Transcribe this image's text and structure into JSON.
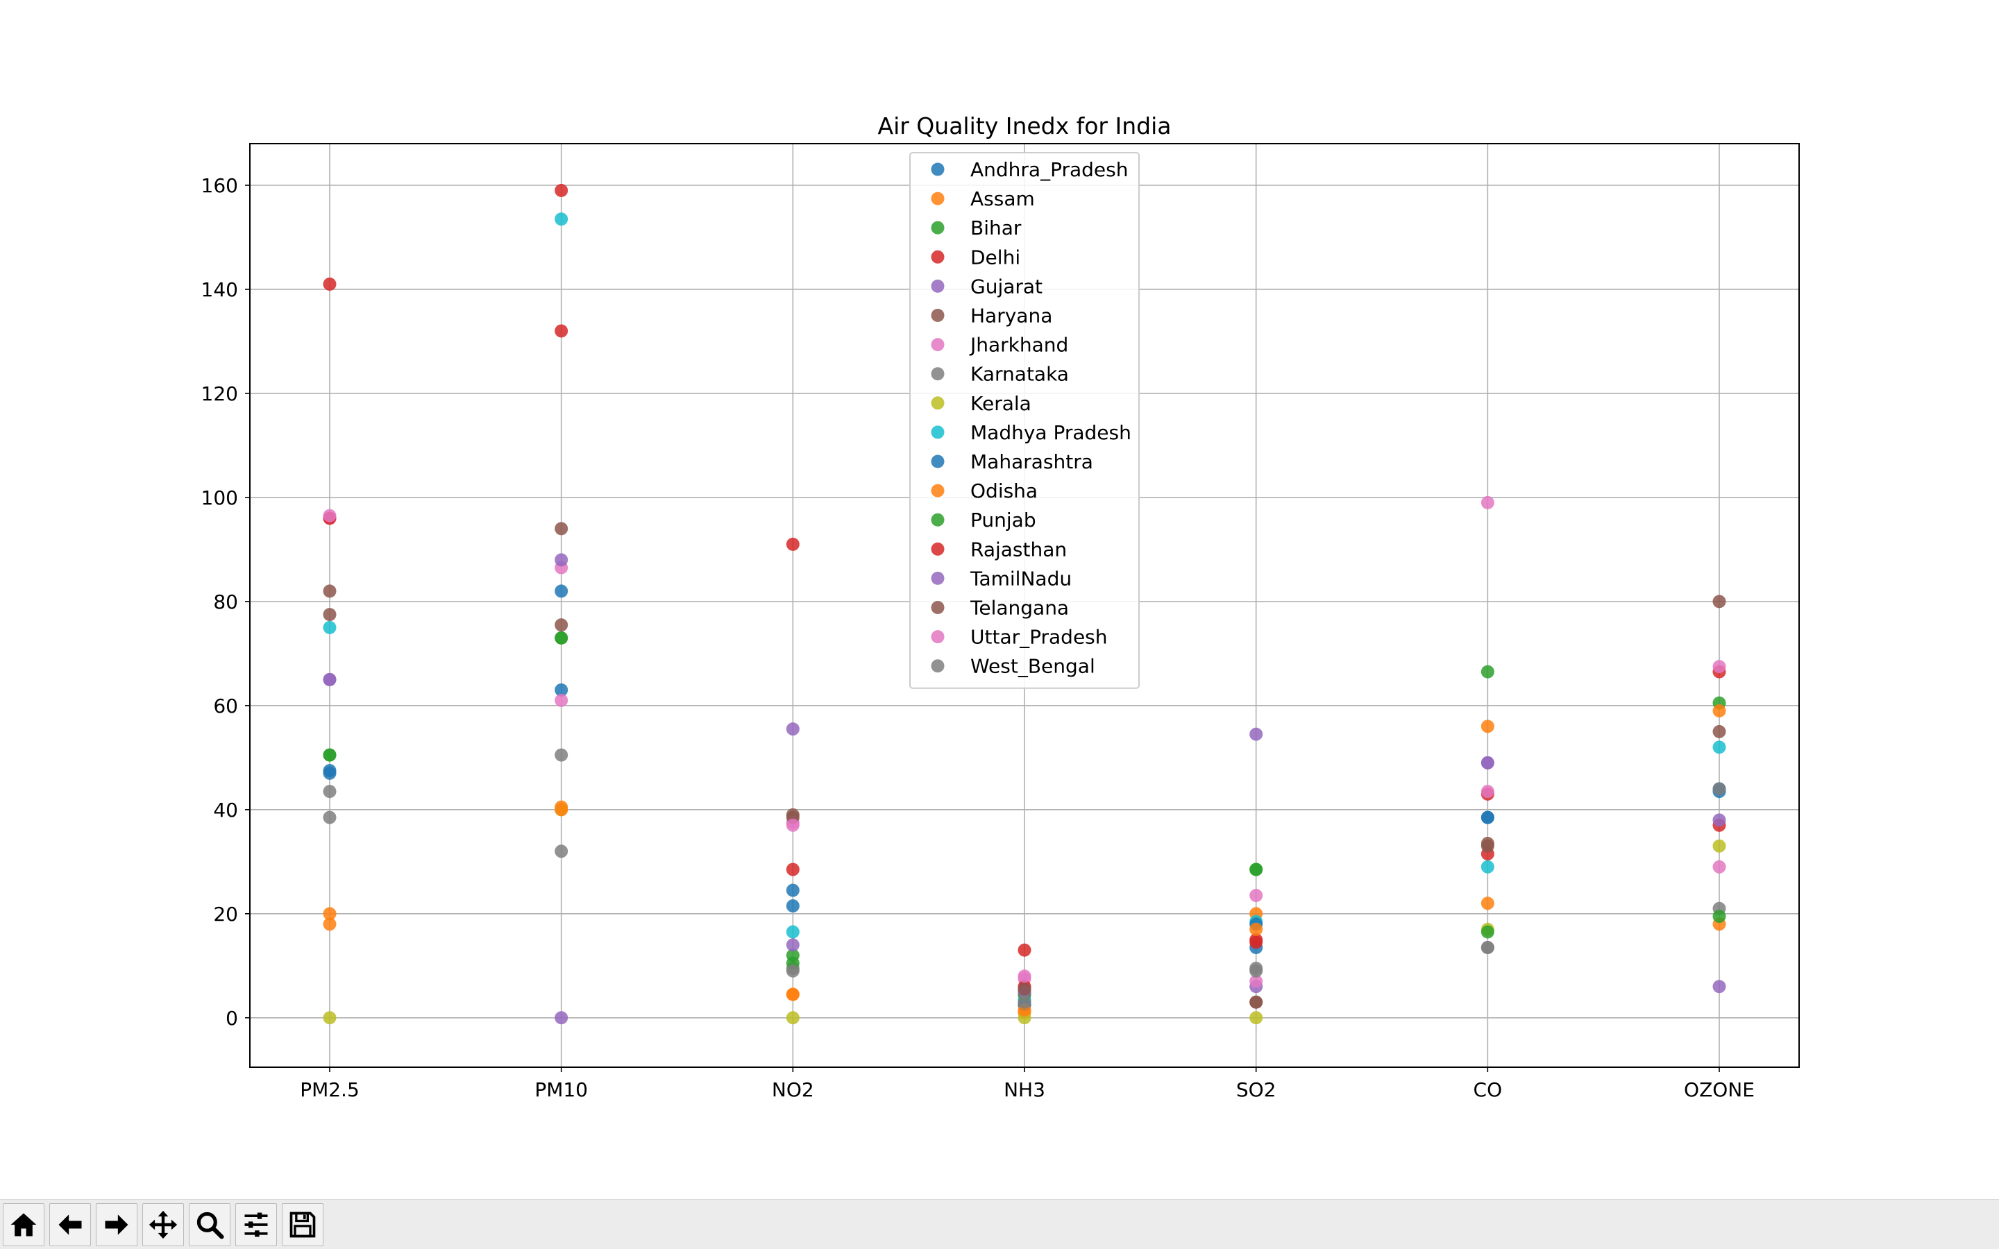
{
  "chart_data": {
    "type": "scatter",
    "title": "Air Quality Inedx for India",
    "xlabel": "",
    "ylabel": "",
    "categories": [
      "PM2.5",
      "PM10",
      "NO2",
      "NH3",
      "SO2",
      "CO",
      "OZONE"
    ],
    "ylim": [
      -9.5,
      168
    ],
    "yticks": [
      0,
      20,
      40,
      60,
      80,
      100,
      120,
      140,
      160
    ],
    "grid": true,
    "legend_position": "upper center",
    "series": [
      {
        "name": "Andhra_Pradesh",
        "color": "#1f77b4",
        "values": [
          47.5,
          63,
          24.5,
          3,
          13.5,
          38.5,
          43.5
        ]
      },
      {
        "name": "Assam",
        "color": "#ff7f0e",
        "values": [
          20,
          40.5,
          4.5,
          1,
          20,
          22,
          18
        ]
      },
      {
        "name": "Bihar",
        "color": "#2ca02c",
        "values": [
          50.5,
          73,
          12,
          5,
          28.5,
          66.5,
          60.5
        ]
      },
      {
        "name": "Delhi",
        "color": "#d62728",
        "values": [
          141,
          132,
          91,
          13,
          15,
          31.5,
          66.5
        ]
      },
      {
        "name": "Gujarat",
        "color": "#9467bd",
        "values": [
          65,
          0,
          55.5,
          5.5,
          54.5,
          49,
          6
        ]
      },
      {
        "name": "Haryana",
        "color": "#8c564b",
        "values": [
          77.5,
          94,
          39,
          4.5,
          3,
          33.5,
          55
        ]
      },
      {
        "name": "Jharkhand",
        "color": "#e377c2",
        "values": [
          96,
          86.5,
          37.5,
          7.5,
          23.5,
          99,
          29
        ]
      },
      {
        "name": "Karnataka",
        "color": "#7f7f7f",
        "values": [
          43.5,
          50.5,
          9.5,
          2.5,
          9.5,
          13.5,
          21
        ]
      },
      {
        "name": "Kerala",
        "color": "#bcbd22",
        "values": [
          0,
          40,
          0,
          0,
          0,
          17,
          33
        ]
      },
      {
        "name": "Madhya Pradesh",
        "color": "#17becf",
        "values": [
          75,
          153.5,
          16.5,
          3.5,
          18.5,
          29,
          52
        ]
      },
      {
        "name": "Maharashtra",
        "color": "#1f77b4",
        "values": [
          47,
          82,
          21.5,
          2.5,
          18,
          38.5,
          44
        ]
      },
      {
        "name": "Odisha",
        "color": "#ff7f0e",
        "values": [
          18,
          40,
          4.5,
          1.5,
          17,
          56,
          59
        ]
      },
      {
        "name": "Punjab",
        "color": "#2ca02c",
        "values": [
          50.5,
          73,
          10.5,
          4.5,
          28.5,
          16.5,
          19.5
        ]
      },
      {
        "name": "Rajasthan",
        "color": "#d62728",
        "values": [
          96,
          159,
          28.5,
          6,
          14.5,
          43,
          37
        ]
      },
      {
        "name": "TamilNadu",
        "color": "#9467bd",
        "values": [
          65,
          88,
          14,
          5,
          6,
          49,
          38
        ]
      },
      {
        "name": "Telangana",
        "color": "#8c564b",
        "values": [
          82,
          75.5,
          38.5,
          5.5,
          3,
          33,
          80
        ]
      },
      {
        "name": "Uttar_Pradesh",
        "color": "#e377c2",
        "values": [
          96.5,
          61,
          37,
          8,
          7,
          43.5,
          67.5
        ]
      },
      {
        "name": "West_Bengal",
        "color": "#7f7f7f",
        "values": [
          38.5,
          32,
          9,
          3,
          9,
          13.5,
          44
        ]
      }
    ]
  },
  "toolbar": {
    "buttons": [
      {
        "name": "home-button",
        "icon": "home-icon"
      },
      {
        "name": "back-button",
        "icon": "arrow-left-icon"
      },
      {
        "name": "forward-button",
        "icon": "arrow-right-icon"
      },
      {
        "name": "pan-button",
        "icon": "move-icon"
      },
      {
        "name": "zoom-button",
        "icon": "magnifier-icon"
      },
      {
        "name": "configure-subplots-button",
        "icon": "sliders-icon"
      },
      {
        "name": "save-button",
        "icon": "floppy-disk-icon"
      }
    ]
  }
}
